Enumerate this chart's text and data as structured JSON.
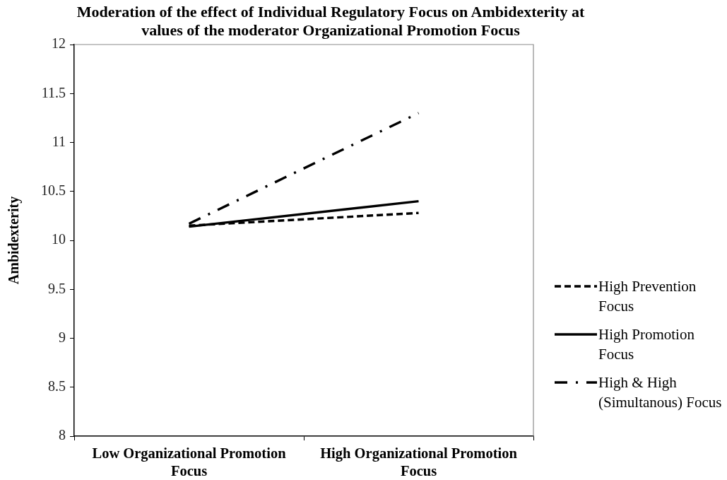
{
  "chart_data": {
    "type": "line",
    "title": "Moderation of the effect of Individual Regulatory Focus on Ambidexterity at values of the moderator Organizational Promotion Focus",
    "ylabel": "Ambidexterity",
    "categories": [
      "Low Organizational Promotion Focus",
      "High Organizational Promotion Focus"
    ],
    "series": [
      {
        "name": "High Prevention Focus",
        "color": "#000000",
        "line_style": "dashed",
        "values": [
          10.15,
          10.28
        ]
      },
      {
        "name": "High Promotion Focus",
        "color": "#000000",
        "line_style": "solid",
        "values": [
          10.14,
          10.4
        ]
      },
      {
        "name": "High & High (Simultanous) Focus",
        "color": "#000000",
        "line_style": "dashdot",
        "values": [
          10.17,
          11.3
        ]
      }
    ],
    "ylim": [
      8,
      12
    ],
    "yticks": [
      8,
      8.5,
      9,
      9.5,
      10,
      10.5,
      11,
      11.5,
      12
    ],
    "grid": false,
    "legend": "right",
    "marker": "none"
  }
}
